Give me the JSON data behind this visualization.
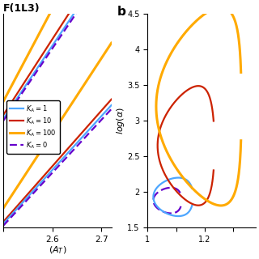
{
  "panel_a_title": "F(1L3)",
  "panel_b_label": "b",
  "panel_a_xlabel": "$(A_T)$",
  "panel_b_ylabel": "$log(\\alpha)$",
  "panel_a_xlim": [
    2.5,
    2.72
  ],
  "panel_b_xlim": [
    1.0,
    1.38
  ],
  "panel_b_ylim": [
    1.5,
    4.5
  ],
  "panel_b_yticks": [
    1.5,
    2.0,
    2.5,
    3.0,
    3.5,
    4.0,
    4.5
  ],
  "panel_b_xticks": [
    1.0,
    1.1,
    1.2,
    1.3
  ],
  "colors": {
    "KA1": "#4da6ff",
    "KA10": "#cc2200",
    "KA100": "#ffaa00",
    "KA0": "#6600cc"
  },
  "legend_labels": [
    "$K_A = 1$",
    "$K_A = 10$",
    "$K_A = 100$",
    "$K_A = 0$"
  ]
}
